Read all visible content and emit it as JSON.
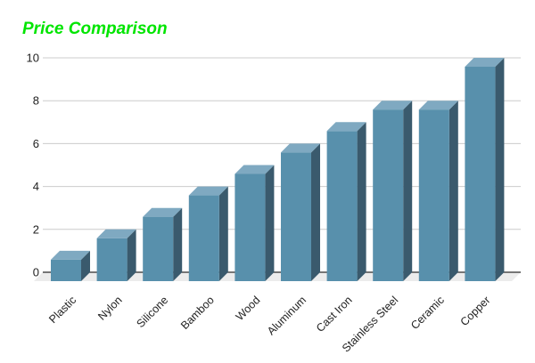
{
  "title": "Price Comparison",
  "chart_data": {
    "type": "bar",
    "variant": "3d-column",
    "title": "Price Comparison",
    "categories": [
      "Plastic",
      "Nylon",
      "Silicone",
      "Bamboo",
      "Wood",
      "Aluminum",
      "Cast Iron",
      "Stainless Steel",
      "Ceramic",
      "Copper"
    ],
    "values": [
      1,
      2,
      3,
      4,
      5,
      6,
      7,
      8,
      8,
      10
    ],
    "xlabel": "",
    "ylabel": "",
    "ylim": [
      0,
      10
    ],
    "yticks": [
      0,
      2,
      4,
      6,
      8,
      10
    ],
    "grid": true,
    "legend": "none",
    "colors": {
      "title": "#00e500",
      "bar_front": "#5890ac",
      "bar_top": "#7fa9c1",
      "bar_side": "#3a5a6d",
      "floor": "#ececec",
      "gridline": "#cccccc",
      "axis_line": "#2b2b2b",
      "tick_label": "#222222",
      "background": "#ffffff"
    }
  }
}
